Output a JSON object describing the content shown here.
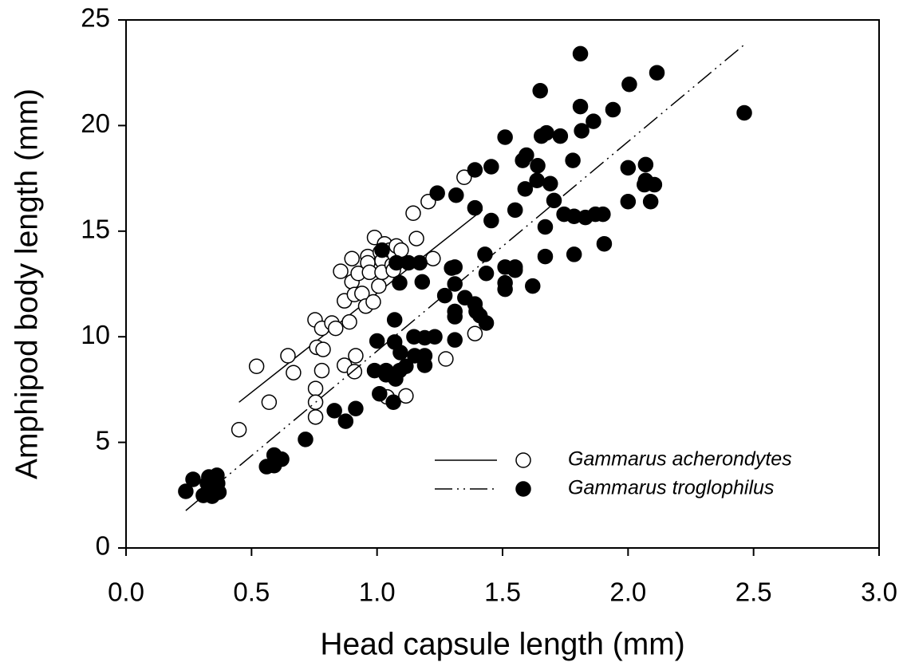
{
  "chart_data": {
    "type": "scatter",
    "xlabel": "Head capsule length (mm)",
    "ylabel": "Amphipod body length (mm)",
    "xlim": [
      0,
      3
    ],
    "ylim": [
      0,
      25
    ],
    "xticks": [
      {
        "value": 0,
        "label": "0.0"
      },
      {
        "value": 0.5,
        "label": "0.5"
      },
      {
        "value": 1,
        "label": "1.0"
      },
      {
        "value": 1.5,
        "label": "1.5"
      },
      {
        "value": 2,
        "label": "2.0"
      },
      {
        "value": 2.5,
        "label": "2.5"
      },
      {
        "value": 3,
        "label": "3.0"
      }
    ],
    "yticks": [
      0,
      5,
      10,
      15,
      20,
      25
    ],
    "legend": "lower right",
    "series": [
      {
        "name": "Gammarus acherondytes",
        "color": "#ffffff",
        "edgecolor": "#000000",
        "linestyle": "solid",
        "fit": {
          "x": [
            0.45,
            1.42
          ],
          "y": [
            6.9,
            16.0
          ]
        },
        "x": [
          0.45,
          0.52,
          0.57,
          0.645,
          0.667,
          0.753,
          0.755,
          0.755,
          0.755,
          0.76,
          0.78,
          0.785,
          0.78,
          0.82,
          0.835,
          0.855,
          0.87,
          0.87,
          0.89,
          0.9,
          0.9,
          0.91,
          0.915,
          0.91,
          0.925,
          0.94,
          0.955,
          0.963,
          0.963,
          0.97,
          0.985,
          0.99,
          1.007,
          1.013,
          1.02,
          1.02,
          1.03,
          1.04,
          1.05,
          1.06,
          1.065,
          1.07,
          1.077,
          1.096,
          1.115,
          1.144,
          1.157,
          1.204,
          1.223,
          1.274,
          1.347,
          1.39
        ],
        "values": [
          5.6,
          8.6,
          6.9,
          9.1,
          8.3,
          10.8,
          7.55,
          6.9,
          6.2,
          9.5,
          10.4,
          9.4,
          8.4,
          10.65,
          10.4,
          13.1,
          11.7,
          8.65,
          10.7,
          13.7,
          12.6,
          12.0,
          9.1,
          8.35,
          13.0,
          12.05,
          11.45,
          13.8,
          13.5,
          13.05,
          11.65,
          14.7,
          12.4,
          14.0,
          13.6,
          13.05,
          14.4,
          7.15,
          14.1,
          13.4,
          13.15,
          13.9,
          14.3,
          14.1,
          7.2,
          15.85,
          14.65,
          16.4,
          13.7,
          8.95,
          17.55,
          10.15
        ]
      },
      {
        "name": "Gammarus troglophilus",
        "color": "#000000",
        "edgecolor": "#000000",
        "linestyle": "dashdotdot",
        "fit": {
          "x": [
            0.238,
            2.47
          ],
          "y": [
            1.77,
            23.9
          ]
        },
        "x": [
          0.238,
          0.267,
          0.308,
          0.324,
          0.33,
          0.337,
          0.343,
          0.356,
          0.362,
          0.365,
          0.37,
          0.56,
          0.59,
          0.59,
          0.62,
          0.715,
          0.83,
          0.875,
          0.915,
          1.0,
          0.99,
          1.01,
          1.02,
          1.036,
          1.036,
          1.065,
          1.07,
          1.07,
          1.074,
          1.09,
          1.093,
          1.115,
          1.077,
          1.125,
          1.09,
          1.15,
          1.147,
          1.17,
          1.18,
          1.19,
          1.19,
          1.19,
          1.23,
          1.24,
          1.27,
          1.297,
          1.31,
          1.31,
          1.31,
          1.31,
          1.31,
          1.315,
          1.35,
          1.39,
          1.39,
          1.39,
          1.395,
          1.41,
          1.43,
          1.435,
          1.435,
          1.455,
          1.455,
          1.51,
          1.51,
          1.51,
          1.51,
          1.55,
          1.55,
          1.55,
          1.58,
          1.595,
          1.59,
          1.62,
          1.637,
          1.64,
          1.65,
          1.655,
          1.67,
          1.67,
          1.675,
          1.69,
          1.705,
          1.73,
          1.745,
          1.78,
          1.785,
          1.785,
          1.81,
          1.81,
          1.815,
          1.83,
          1.862,
          1.87,
          1.9,
          1.905,
          1.94,
          2.005,
          2.0,
          2.0,
          2.065,
          2.07,
          2.07,
          2.09,
          2.105,
          2.115,
          2.463
        ],
        "values": [
          2.68,
          3.25,
          2.49,
          3.06,
          3.36,
          2.87,
          2.45,
          2.83,
          3.44,
          3.06,
          2.64,
          3.85,
          3.9,
          4.4,
          4.2,
          5.14,
          6.5,
          6.0,
          6.6,
          9.8,
          8.4,
          7.3,
          14.1,
          8.4,
          8.2,
          6.9,
          9.75,
          10.8,
          8.0,
          8.4,
          9.25,
          8.6,
          13.5,
          13.5,
          12.55,
          9.1,
          10.0,
          13.5,
          12.6,
          9.1,
          8.65,
          9.95,
          10.0,
          16.8,
          11.95,
          13.25,
          13.3,
          12.5,
          11.2,
          10.95,
          9.85,
          16.7,
          11.85,
          17.9,
          16.1,
          11.55,
          11.2,
          11.0,
          13.9,
          13.0,
          10.65,
          18.05,
          15.5,
          19.45,
          13.3,
          12.55,
          12.25,
          13.3,
          13.15,
          16.0,
          18.35,
          18.6,
          17.0,
          12.4,
          17.4,
          18.1,
          21.65,
          19.5,
          15.2,
          13.8,
          19.65,
          17.25,
          16.45,
          19.5,
          15.8,
          18.35,
          15.7,
          13.9,
          23.4,
          20.9,
          19.75,
          15.65,
          20.2,
          15.8,
          15.8,
          14.4,
          20.75,
          21.95,
          18.0,
          16.4,
          17.2,
          18.15,
          17.4,
          16.4,
          17.2,
          22.5,
          20.6
        ]
      }
    ]
  }
}
